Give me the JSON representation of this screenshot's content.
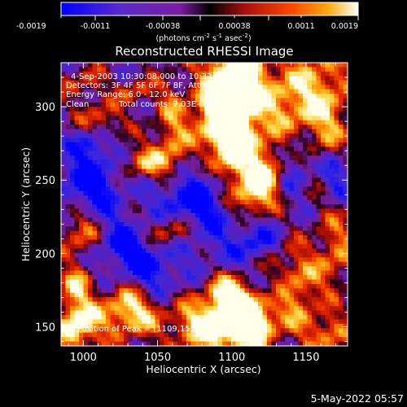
{
  "chart_data": {
    "type": "heatmap",
    "title": "Reconstructed RHESSI Image",
    "xlabel": "Heliocentric X (arcsec)",
    "ylabel": "Heliocentric Y (arcsec)",
    "xlim": [
      985,
      1178
    ],
    "ylim": [
      137,
      330
    ],
    "xticks": [
      "1000",
      "1050",
      "1100",
      "1150"
    ],
    "yticks": [
      "150",
      "200",
      "250",
      "300"
    ],
    "colorbar": {
      "min": -0.0019,
      "max": 0.0019,
      "ticks": [
        "-0.0019",
        "-0.0011",
        "-0.00038",
        "0.00038",
        "0.0011",
        "0.0019"
      ],
      "label": "(photons cm-2 s-1 asec-2)",
      "label_parts": {
        "pre": "(photons cm",
        "e1": "-2",
        "s": " s",
        "e2": "-1",
        "a": " asec",
        "e3": "-2",
        "post": ")"
      }
    },
    "annotations": {
      "time_range": "4-Sep-2003 10:30:08.000 to 10:32:28.000",
      "detectors": "Detectors: 3F 4F 5F 6F 7F 8F, Att 0",
      "energy": "Energy Range: 6.0 - 12.0 keV",
      "algorithm": "Clean",
      "counts": "Total counts: 7.03E+03",
      "peak": "Position of Peak = [1109,153]"
    },
    "peak": {
      "x": 1109,
      "y": 153
    }
  },
  "footer": {
    "timestamp": "5-May-2022 05:57"
  }
}
